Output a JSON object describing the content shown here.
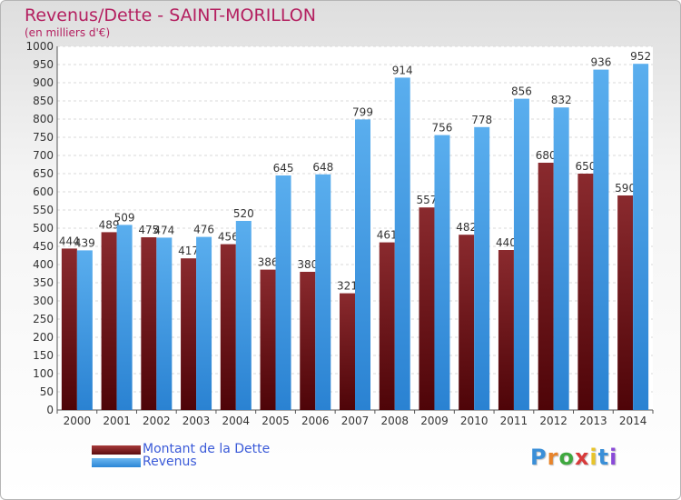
{
  "chart_data": {
    "type": "bar",
    "title": "Revenus/Dette - SAINT-MORILLON",
    "subtitle": "(en milliers d'€)",
    "categories": [
      "2000",
      "2001",
      "2002",
      "2003",
      "2004",
      "2005",
      "2006",
      "2007",
      "2008",
      "2009",
      "2010",
      "2011",
      "2012",
      "2013",
      "2014"
    ],
    "series": [
      {
        "name": "Montant de la Dette",
        "values": [
          444,
          489,
          475,
          417,
          456,
          386,
          380,
          321,
          461,
          557,
          482,
          440,
          680,
          650,
          590
        ],
        "color": "#7a1e24"
      },
      {
        "name": "Revenus",
        "values": [
          439,
          509,
          474,
          476,
          520,
          645,
          648,
          799,
          914,
          756,
          778,
          856,
          832,
          936,
          952
        ],
        "color": "#3f9ae2"
      }
    ],
    "yticks": [
      0,
      50,
      100,
      150,
      200,
      250,
      300,
      350,
      400,
      450,
      500,
      550,
      600,
      650,
      700,
      750,
      800,
      850,
      900,
      950,
      1000
    ],
    "ylim": [
      0,
      1000
    ],
    "grid": true,
    "legend_position": "bottom-left"
  },
  "logo": {
    "text": "Proxiti"
  }
}
